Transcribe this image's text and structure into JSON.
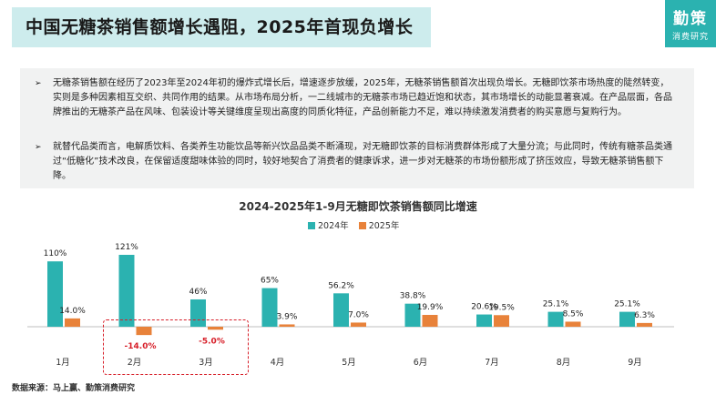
{
  "header": {
    "title": "中国无糖茶销售额增长遇阻，2025年首现负增长",
    "logo_main": "勤策",
    "logo_sub": "消费研究"
  },
  "summary": {
    "bullets": [
      "无糖茶销售额在经历了2023年至2024年初的爆炸式增长后，增速逐步放缓，2025年，无糖茶销售额首次出现负增长。无糖即饮茶市场热度的陡然转变，实则是多种因素相互交织、共同作用的结果。从市场布局分析，一二线城市的无糖茶市场已趋近饱和状态，其市场增长的动能显著衰减。在产品层面，各品牌推出的无糖茶产品在风味、包装设计等关键维度呈现出高度的同质化特征，产品创新能力不足，难以持续激发消费者的购买意愿与复购行为。",
      "就替代品类而言，电解质饮料、各类养生功能饮品等新兴饮品品类不断涌现，对无糖即饮茶的目标消费群体形成了大量分流；与此同时，传统有糖茶品类通过“低糖化”技术改良，在保留适度甜味体验的同时，较好地契合了消费者的健康诉求，进一步对无糖茶的市场份额形成了挤压效应，导致无糖茶销售额下降。"
    ],
    "bullet_mark": "➢"
  },
  "chart_data": {
    "type": "bar",
    "title": "2024-2025年1-9月无糖即饮茶销售额同比增速",
    "categories": [
      "1月",
      "2月",
      "3月",
      "4月",
      "5月",
      "6月",
      "7月",
      "8月",
      "9月"
    ],
    "series": [
      {
        "name": "2024年",
        "color": "#2bb2b0",
        "values": [
          110,
          121,
          46,
          65,
          56.2,
          38.8,
          20.6,
          25.1,
          25.1
        ],
        "labels": [
          "110%",
          "121%",
          "46%",
          "65%",
          "56.2%",
          "38.8%",
          "20.6%",
          "25.1%",
          "25.1%"
        ]
      },
      {
        "name": "2025年",
        "color": "#e8823a",
        "values": [
          14.0,
          -14.0,
          -5.0,
          3.9,
          7.0,
          19.9,
          19.5,
          8.5,
          6.3
        ],
        "labels": [
          "14.0%",
          "-14.0%",
          "-5.0%",
          "3.9%",
          "7.0%",
          "19.9%",
          "19.5%",
          "8.5%",
          "6.3%"
        ]
      }
    ],
    "highlight_color": "#d71e28",
    "axis_color": "#bfbfbf",
    "grid": false,
    "legend_position": "top-center"
  },
  "footer": {
    "source": "数据来源：马上赢、勤策消费研究"
  }
}
